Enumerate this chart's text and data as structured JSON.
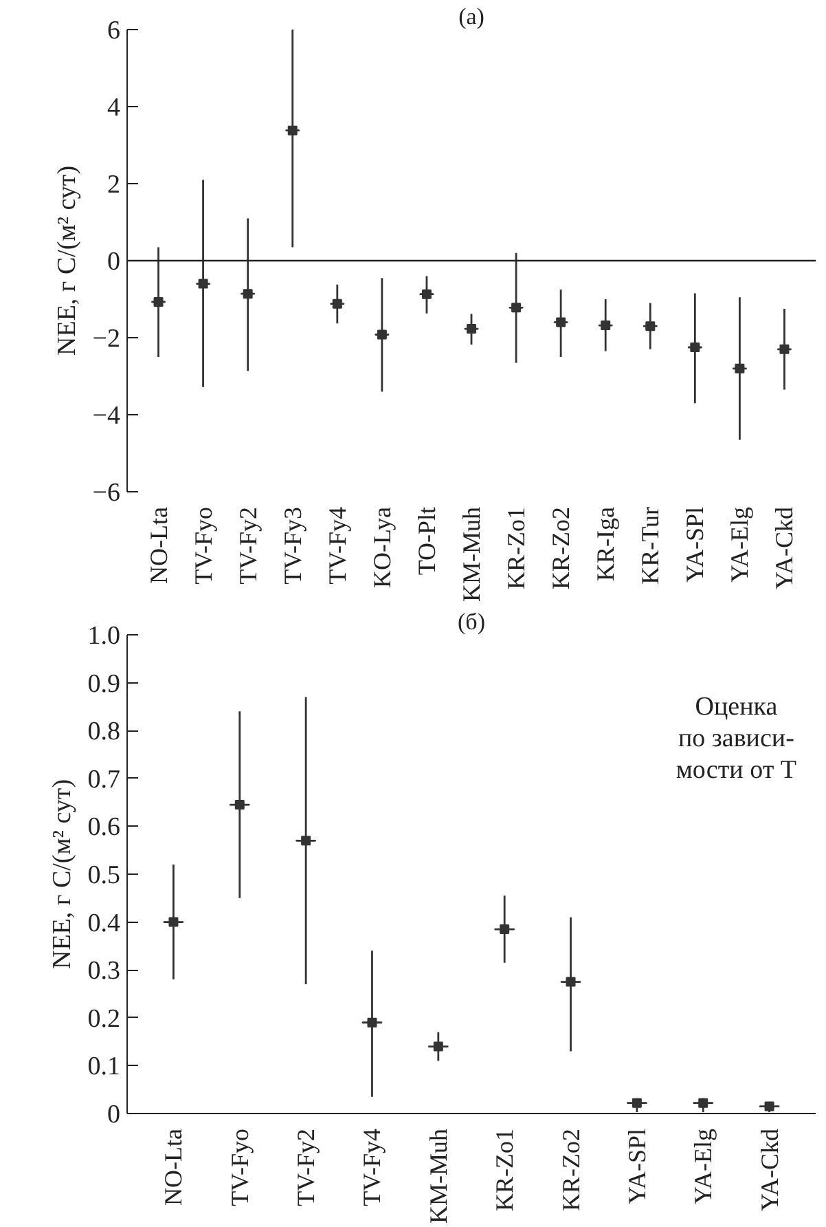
{
  "chart_data": [
    {
      "type": "scatter",
      "title": "(a)",
      "ylabel": "NEE, г C/(м² сут)",
      "categories": [
        "NO-Lta",
        "TV-Fyo",
        "TV-Fy2",
        "TV-Fy3",
        "TV-Fy4",
        "KO-Lya",
        "TO-Plt",
        "KM-Muh",
        "KR-Zo1",
        "KR-Zo2",
        "KR-Iga",
        "KR-Tur",
        "YA-SPl",
        "YA-Elg",
        "YA-Ckd"
      ],
      "series": [
        {
          "color": "#333333",
          "values": [
            -1.07,
            -0.6,
            -0.86,
            3.38,
            -1.12,
            -1.92,
            -0.87,
            -1.77,
            -1.22,
            -1.6,
            -1.68,
            -1.7,
            -2.25,
            -2.8,
            -2.3
          ],
          "errors": [
            [
              -2.5,
              0.35
            ],
            [
              -3.28,
              2.1
            ],
            [
              -2.86,
              1.1
            ],
            [
              0.35,
              6.0
            ],
            [
              -1.63,
              -0.62
            ],
            [
              -3.4,
              -0.45
            ],
            [
              -1.37,
              -0.4
            ],
            [
              -2.18,
              -1.38
            ],
            [
              -2.65,
              0.2
            ],
            [
              -2.5,
              -0.75
            ],
            [
              -2.35,
              -1.0
            ],
            [
              -2.3,
              -1.1
            ],
            [
              -3.7,
              -0.85
            ],
            [
              -4.65,
              -0.95
            ],
            [
              -3.35,
              -1.25
            ]
          ]
        }
      ],
      "ylim": [
        -6,
        6
      ],
      "yticks": [
        {
          "value": -6,
          "label": "−6"
        },
        {
          "value": -4,
          "label": "−4"
        },
        {
          "value": -2,
          "label": "−2"
        },
        0,
        2,
        4,
        6
      ],
      "ref_lines": [
        {
          "axis": "y",
          "value": 0,
          "color": "#222222"
        }
      ],
      "grid": false,
      "marker": "square"
    },
    {
      "type": "scatter",
      "title": "(б)",
      "ylabel": "NEE, г C/(м² сут)",
      "categories": [
        "NO-Lta",
        "TV-Fyo",
        "TV-Fy2",
        "TV-Fy4",
        "KM-Muh",
        "KR-Zo1",
        "KR-Zo2",
        "YA-SPl",
        "YA-Elg",
        "YA-Ckd"
      ],
      "series": [
        {
          "color": "#333333",
          "values": [
            0.4,
            0.645,
            0.57,
            0.19,
            0.14,
            0.385,
            0.275,
            0.022,
            0.022,
            0.015
          ],
          "errors": [
            [
              0.28,
              0.52
            ],
            [
              0.45,
              0.84
            ],
            [
              0.27,
              0.87
            ],
            [
              0.035,
              0.34
            ],
            [
              0.11,
              0.17
            ],
            [
              0.315,
              0.455
            ],
            [
              0.13,
              0.41
            ],
            [
              0.003,
              0.032
            ],
            [
              0.003,
              0.032
            ],
            [
              0.003,
              0.022
            ]
          ]
        }
      ],
      "ylim": [
        0,
        1
      ],
      "yticks": [
        0,
        0.1,
        0.2,
        0.3,
        0.4,
        0.5,
        0.6,
        0.7,
        0.8,
        0.9,
        {
          "value": 1,
          "label": "1.0"
        }
      ],
      "annotations": [
        "Оценка\nпо зависи-\nмости от T"
      ],
      "grid": false,
      "marker": "square"
    }
  ]
}
